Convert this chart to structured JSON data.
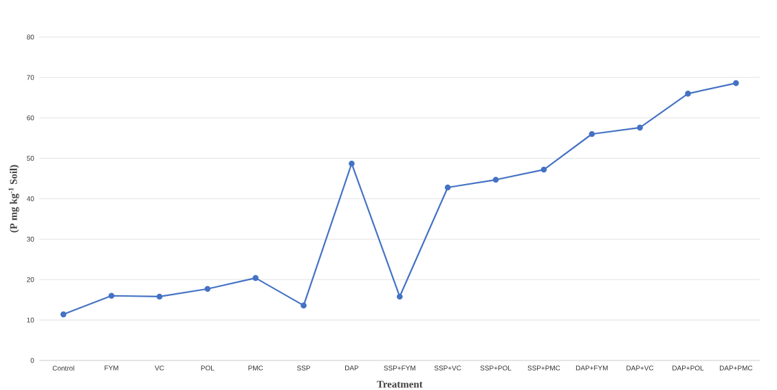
{
  "chart_data": {
    "type": "line",
    "xlabel": "Treatment",
    "ylabel": "(P mg kg$^{-1}$ Soil)",
    "categories": [
      "Control",
      "FYM",
      "VC",
      "POL",
      "PMC",
      "SSP",
      "DAP",
      "SSP+FYM",
      "SSP+VC",
      "SSP+POL",
      "SSP+PMC",
      "DAP+FYM",
      "DAP+VC",
      "DAP+POL",
      "DAP+PMC"
    ],
    "series": [
      {
        "color": "#4472c4",
        "values": [
          11.4,
          16.0,
          15.8,
          17.7,
          20.4,
          13.6,
          48.7,
          15.8,
          42.8,
          44.7,
          47.2,
          56.0,
          57.6,
          66.0,
          68.6
        ]
      }
    ],
    "ylim": [
      0,
      80
    ],
    "yticks": [
      0,
      10,
      20,
      30,
      40,
      50,
      60,
      70,
      80
    ],
    "grid": "y",
    "marker": "circle",
    "line_style": "solid"
  }
}
